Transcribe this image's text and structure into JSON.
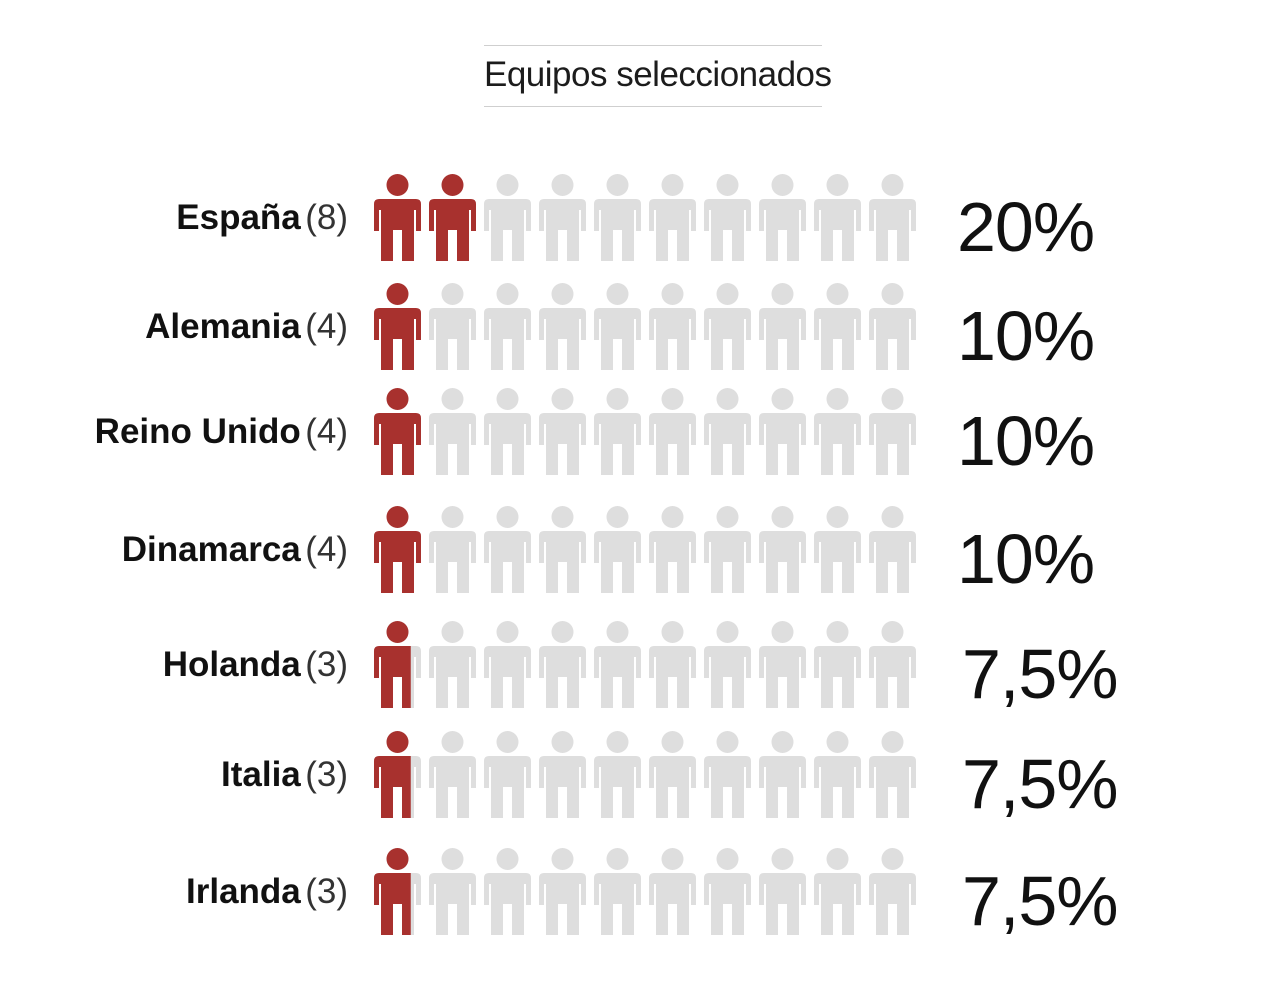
{
  "chart_data": {
    "type": "bar",
    "title": "Equipos seleccionados",
    "categories": [
      "España",
      "Alemania",
      "Reino Unido",
      "Dinamarca",
      "Holanda",
      "Italia",
      "Irlanda"
    ],
    "counts": [
      "(8)",
      "(4)",
      "(4)",
      "(4)",
      "(3)",
      "(3)",
      "(3)"
    ],
    "values": [
      20,
      10,
      10,
      10,
      7.5,
      7.5,
      7.5
    ],
    "value_labels": [
      "20%",
      "10%",
      "10%",
      "10%",
      "7,5%",
      "7,5%",
      "7,5%"
    ],
    "icons_per_row": 10,
    "percent_per_icon": 10
  },
  "colors": {
    "filled": "#a8312e",
    "empty": "#dedede",
    "rule": "#cfcfcf"
  },
  "icon": "person-icon"
}
